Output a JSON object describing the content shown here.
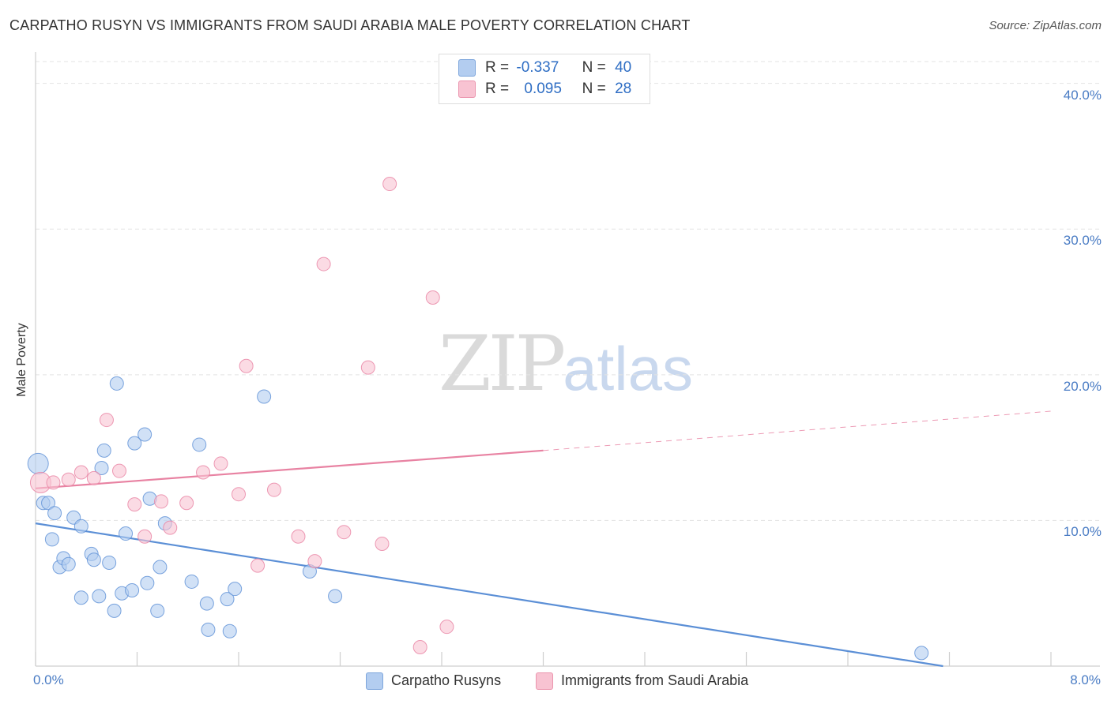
{
  "title": "CARPATHO RUSYN VS IMMIGRANTS FROM SAUDI ARABIA MALE POVERTY CORRELATION CHART",
  "source": "Source: ZipAtlas.com",
  "watermark": {
    "zip": "ZIP",
    "atlas": "atlas"
  },
  "legend": {
    "rows": [
      {
        "r_label": "R =",
        "r_value": "-0.337",
        "n_label": "N =",
        "n_value": "40",
        "color": "#b3cdf0"
      },
      {
        "r_label": "R =",
        "r_value": "0.095",
        "n_label": "N =",
        "n_value": "28",
        "color": "#f8c3d2"
      }
    ]
  },
  "bottom_legend": [
    {
      "label": "Carpatho Rusyns",
      "color": "#b3cdf0"
    },
    {
      "label": "Immigrants from Saudi Arabia",
      "color": "#f8c3d2"
    }
  ],
  "chart_data": {
    "type": "scatter",
    "title": "CARPATHO RUSYN VS IMMIGRANTS FROM SAUDI ARABIA MALE POVERTY CORRELATION CHART",
    "xlabel": "",
    "ylabel": "Male Poverty",
    "xlim": [
      0,
      8
    ],
    "ylim": [
      0,
      41.5
    ],
    "x_tick_labels": [
      {
        "value": 0,
        "label": "0.0%"
      },
      {
        "value": 8,
        "label": "8.0%"
      }
    ],
    "y_tick_labels": [
      {
        "value": 10,
        "label": "10.0%"
      },
      {
        "value": 20,
        "label": "20.0%"
      },
      {
        "value": 30,
        "label": "30.0%"
      },
      {
        "value": 40,
        "label": "40.0%"
      }
    ],
    "grid": true,
    "series": [
      {
        "name": "Carpatho Rusyns",
        "color": "#5b8fd6",
        "fill": "#b3cdf0",
        "points": [
          [
            0.02,
            13.9
          ],
          [
            0.06,
            11.2
          ],
          [
            0.1,
            11.2
          ],
          [
            0.13,
            8.7
          ],
          [
            0.15,
            10.5
          ],
          [
            0.19,
            6.8
          ],
          [
            0.22,
            7.4
          ],
          [
            0.26,
            7.0
          ],
          [
            0.3,
            10.2
          ],
          [
            0.36,
            9.6
          ],
          [
            0.36,
            4.7
          ],
          [
            0.44,
            7.7
          ],
          [
            0.46,
            7.3
          ],
          [
            0.5,
            4.8
          ],
          [
            0.52,
            13.6
          ],
          [
            0.54,
            14.8
          ],
          [
            0.58,
            7.1
          ],
          [
            0.62,
            3.8
          ],
          [
            0.64,
            19.4
          ],
          [
            0.68,
            5.0
          ],
          [
            0.71,
            9.1
          ],
          [
            0.76,
            5.2
          ],
          [
            0.78,
            15.3
          ],
          [
            0.86,
            15.9
          ],
          [
            0.88,
            5.7
          ],
          [
            0.9,
            11.5
          ],
          [
            0.96,
            3.8
          ],
          [
            0.98,
            6.8
          ],
          [
            1.02,
            9.8
          ],
          [
            1.23,
            5.8
          ],
          [
            1.29,
            15.2
          ],
          [
            1.35,
            4.3
          ],
          [
            1.36,
            2.5
          ],
          [
            1.51,
            4.6
          ],
          [
            1.53,
            2.4
          ],
          [
            1.57,
            5.3
          ],
          [
            1.8,
            18.5
          ],
          [
            2.16,
            6.5
          ],
          [
            2.36,
            4.8
          ],
          [
            6.98,
            0.9
          ]
        ]
      },
      {
        "name": "Immigrants from Saudi Arabia",
        "color": "#e882a2",
        "fill": "#f8c3d2",
        "points": [
          [
            0.04,
            12.6
          ],
          [
            0.14,
            12.6
          ],
          [
            0.26,
            12.8
          ],
          [
            0.36,
            13.3
          ],
          [
            0.46,
            12.9
          ],
          [
            0.56,
            16.9
          ],
          [
            0.66,
            13.4
          ],
          [
            0.78,
            11.1
          ],
          [
            0.86,
            8.9
          ],
          [
            0.99,
            11.3
          ],
          [
            1.06,
            9.5
          ],
          [
            1.19,
            11.2
          ],
          [
            1.32,
            13.3
          ],
          [
            1.46,
            13.9
          ],
          [
            1.6,
            11.8
          ],
          [
            1.66,
            20.6
          ],
          [
            1.75,
            6.9
          ],
          [
            1.88,
            12.1
          ],
          [
            2.07,
            8.9
          ],
          [
            2.2,
            7.2
          ],
          [
            2.27,
            27.6
          ],
          [
            2.43,
            9.2
          ],
          [
            2.62,
            20.5
          ],
          [
            2.73,
            8.4
          ],
          [
            2.79,
            33.1
          ],
          [
            3.13,
            25.3
          ],
          [
            3.03,
            1.3
          ],
          [
            3.24,
            2.7
          ]
        ]
      }
    ],
    "trend_lines": [
      {
        "series": "Carpatho Rusyns",
        "x": [
          0,
          7.15
        ],
        "y": [
          9.8,
          0
        ],
        "style": "solid"
      },
      {
        "series": "Immigrants from Saudi Arabia",
        "x": [
          0,
          4.0
        ],
        "y": [
          12.2,
          14.8
        ],
        "style": "solid"
      },
      {
        "series": "Immigrants from Saudi Arabia",
        "x": [
          4.0,
          8.0
        ],
        "y": [
          14.8,
          17.5
        ],
        "style": "dashed"
      }
    ]
  }
}
